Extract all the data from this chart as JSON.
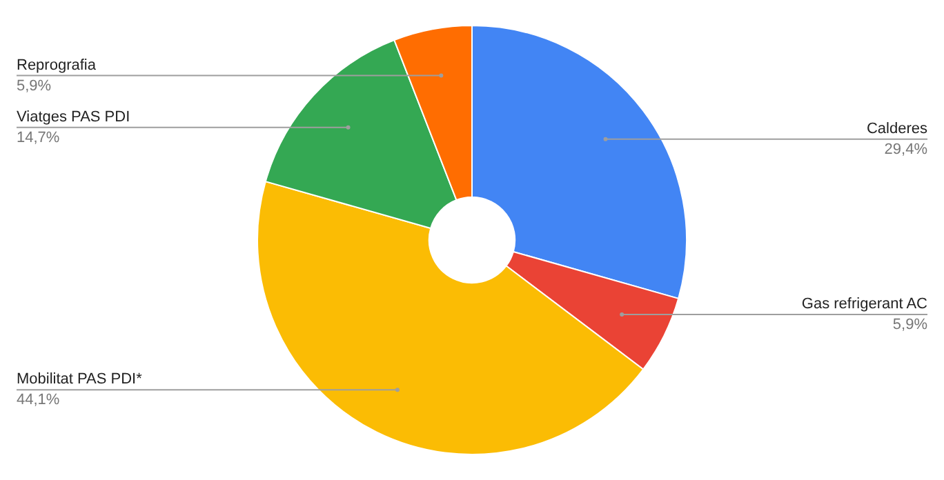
{
  "chart_data": {
    "type": "donut",
    "categories": [
      "Calderes",
      "Gas refrigerant AC",
      "Mobilitat PAS PDI*",
      "Viatges PAS PDI",
      "Reprografia"
    ],
    "values": [
      29.4,
      5.9,
      44.1,
      14.7,
      5.9
    ],
    "colors": [
      "#4285f4",
      "#ea4335",
      "#fbbc04",
      "#34a853",
      "#ff6d01"
    ],
    "value_labels": [
      "29,4%",
      "5,9%",
      "44,1%",
      "14,7%",
      "5,9%"
    ],
    "legend": false
  }
}
